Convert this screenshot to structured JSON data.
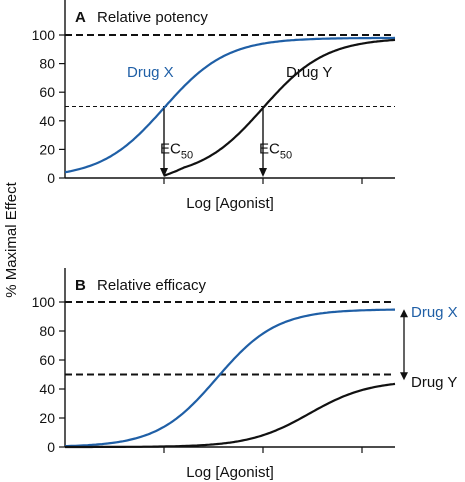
{
  "ylabel": "% Maximal Effect",
  "colors": {
    "drug_x": "#1f5fa6",
    "drug_y": "#111111",
    "axis": "#111111"
  },
  "chart_data": [
    {
      "type": "line",
      "panel_letter": "A",
      "title": "Relative potency",
      "xlabel": "Log [Agonist]",
      "ylim": [
        0,
        105
      ],
      "yticks": [
        0,
        20,
        40,
        60,
        80,
        100
      ],
      "xlim": [
        0,
        10
      ],
      "x_tick_positions": [
        3,
        6,
        9
      ],
      "grid": false,
      "reference_lines": [
        {
          "y": 100,
          "style": "dashed-heavy"
        },
        {
          "y": 50,
          "style": "dashed-light"
        }
      ],
      "series": [
        {
          "name": "Drug X",
          "color": "#1f5fa6",
          "model": {
            "emax": 98,
            "ec50": 3.0,
            "slope": 1.05
          },
          "x": [
            0,
            1,
            2,
            3,
            4,
            5,
            6,
            7,
            8,
            10
          ],
          "y": [
            1,
            5,
            23,
            49,
            75,
            90,
            96,
            97.5,
            98,
            98
          ]
        },
        {
          "name": "Drug Y",
          "color": "#111111",
          "model": {
            "emax": 98,
            "ec50": 6.0,
            "slope": 1.05
          },
          "x": [
            3,
            4,
            5,
            6,
            7,
            8,
            9,
            10
          ],
          "y": [
            0,
            10,
            23,
            49,
            75,
            90,
            96,
            98
          ]
        }
      ],
      "annotations": [
        {
          "label": "EC",
          "sub": "50",
          "x": 3.0,
          "y_from": 30,
          "y_to": 0
        },
        {
          "label": "EC",
          "sub": "50",
          "x": 6.0,
          "y_from": 30,
          "y_to": 0
        }
      ]
    },
    {
      "type": "line",
      "panel_letter": "B",
      "title": "Relative efficacy",
      "xlabel": "Log [Agonist]",
      "ylim": [
        0,
        105
      ],
      "yticks": [
        0,
        20,
        40,
        60,
        80,
        100
      ],
      "xlim": [
        0,
        10
      ],
      "x_tick_positions": [
        3,
        6,
        9
      ],
      "grid": false,
      "reference_lines": [
        {
          "y": 100,
          "style": "dashed-heavy"
        },
        {
          "y": 50,
          "style": "dashed-heavy"
        }
      ],
      "series": [
        {
          "name": "Drug X",
          "color": "#1f5fa6",
          "model": {
            "emax": 95,
            "ec50": 4.6,
            "slope": 1.1
          },
          "x": [
            0,
            2,
            3,
            4,
            5,
            6,
            7,
            8,
            10
          ],
          "y": [
            1,
            5,
            14,
            32,
            59,
            80,
            89,
            93,
            95
          ]
        },
        {
          "name": "Drug Y",
          "color": "#111111",
          "model": {
            "emax": 46,
            "ec50": 7.4,
            "slope": 1.1
          },
          "x": [
            0,
            3,
            4,
            5,
            6,
            7,
            8,
            9,
            10
          ],
          "y": [
            0,
            1,
            3,
            6,
            11,
            20,
            31,
            40,
            45
          ]
        }
      ],
      "annotations": [
        {
          "label": "Drug X",
          "type": "double-arrow",
          "y_top": 95,
          "y_bottom": 46
        }
      ]
    }
  ]
}
